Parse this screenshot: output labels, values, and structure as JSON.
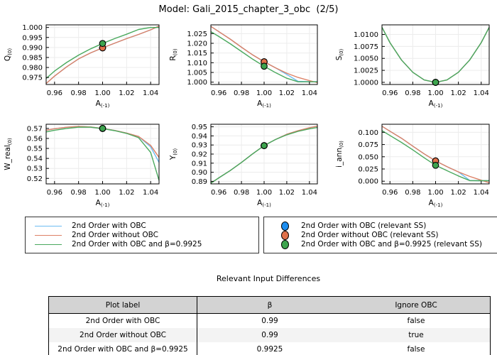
{
  "title": "Model: Gali_2015_chapter_3_obc  (2/5)",
  "colors": {
    "line_blue": "#6cbcf2",
    "line_red": "#dd8166",
    "line_green": "#4aa95e",
    "marker_blue": "#1b8df0",
    "marker_red": "#e0714a",
    "marker_green": "#3da44e",
    "grid": "#ececec",
    "axis": "#000000",
    "table_header_bg": "#d3d3d3",
    "table_alt_bg": "#f3f3f3",
    "table_border": "#000000"
  },
  "legend": {
    "lines": [
      {
        "label": "2nd Order with OBC",
        "color": "line_blue"
      },
      {
        "label": "2nd Order without OBC",
        "color": "line_red"
      },
      {
        "label": "2nd Order with OBC and β=0.9925",
        "color": "line_green"
      }
    ],
    "markers": [
      {
        "label": "2nd Order with OBC (relevant SS)",
        "color": "marker_blue"
      },
      {
        "label": "2nd Order without OBC (relevant SS)",
        "color": "marker_red"
      },
      {
        "label": "2nd Order with OBC and β=0.9925 (relevant SS)",
        "color": "marker_green"
      }
    ]
  },
  "table": {
    "title": "Relevant Input Differences",
    "columns": [
      "Plot label",
      "β",
      "Ignore OBC"
    ],
    "rows": [
      [
        "2nd Order with OBC",
        "0.99",
        "false"
      ],
      [
        "2nd Order without OBC",
        "0.99",
        "true"
      ],
      [
        "2nd Order with OBC and β=0.9925",
        "0.9925",
        "false"
      ]
    ]
  },
  "chart_data": [
    {
      "type": "line",
      "ylabel": "Q",
      "ylabel_sub": "(0)",
      "xlabel": "A",
      "xlabel_sub": "(-1)",
      "xlim": [
        0.953,
        1.047
      ],
      "ylim": [
        0.9715,
        1.0013
      ],
      "xticks": [
        0.96,
        0.98,
        1.0,
        1.02,
        1.04
      ],
      "xtick_labels": [
        "0.96",
        "0.98",
        "1.00",
        "1.02",
        "1.04"
      ],
      "yticks": [
        0.975,
        0.98,
        0.985,
        0.99,
        0.995,
        1.0
      ],
      "ytick_labels": [
        "0.975",
        "0.980",
        "0.985",
        "0.990",
        "0.995",
        "1.000"
      ],
      "x": [
        0.953,
        0.96,
        0.97,
        0.98,
        0.99,
        1.0,
        1.01,
        1.02,
        1.03,
        1.04,
        1.047
      ],
      "series": [
        {
          "name": "2nd Order with OBC",
          "color": "line_blue",
          "y": [
            0.972,
            0.9757,
            0.9803,
            0.9843,
            0.9873,
            0.9898,
            0.9921,
            0.9944,
            0.9965,
            0.9988,
            1.0007
          ]
        },
        {
          "name": "2nd Order without OBC",
          "color": "line_red",
          "y": [
            0.972,
            0.9757,
            0.9803,
            0.9843,
            0.9873,
            0.9898,
            0.9921,
            0.9944,
            0.9965,
            0.9988,
            1.0007
          ]
        },
        {
          "name": "2nd Order with OBC and β=0.9925",
          "color": "line_green",
          "y": [
            0.9745,
            0.9782,
            0.9825,
            0.9862,
            0.9893,
            0.992,
            0.9944,
            0.9966,
            0.999,
            1.0,
            1.0
          ]
        }
      ],
      "markers": [
        {
          "name": "2nd Order with OBC (relevant SS)",
          "color": "marker_blue",
          "x": 1.0,
          "y": 0.9898
        },
        {
          "name": "2nd Order without OBC (relevant SS)",
          "color": "marker_red",
          "x": 1.0,
          "y": 0.9898
        },
        {
          "name": "2nd Order with OBC and β=0.9925 (relevant SS)",
          "color": "marker_green",
          "x": 1.0,
          "y": 0.992
        }
      ]
    },
    {
      "type": "line",
      "ylabel": "R",
      "ylabel_sub": "(0)",
      "xlabel": "A",
      "xlabel_sub": "(-1)",
      "xlim": [
        0.953,
        1.047
      ],
      "ylim": [
        0.9988,
        1.0295
      ],
      "xticks": [
        0.96,
        0.98,
        1.0,
        1.02,
        1.04
      ],
      "xtick_labels": [
        "0.96",
        "0.98",
        "1.00",
        "1.02",
        "1.04"
      ],
      "yticks": [
        1.0,
        1.005,
        1.01,
        1.015,
        1.02,
        1.025
      ],
      "ytick_labels": [
        "1.000",
        "1.005",
        "1.010",
        "1.015",
        "1.020",
        "1.025"
      ],
      "x": [
        0.953,
        0.96,
        0.97,
        0.98,
        0.99,
        1.0,
        1.01,
        1.02,
        1.03,
        1.04,
        1.047
      ],
      "series": [
        {
          "name": "2nd Order with OBC",
          "color": "line_blue",
          "y": [
            1.0287,
            1.026,
            1.0222,
            1.018,
            1.014,
            1.0105,
            1.0074,
            1.004,
            1.0004,
            1.0003,
            1.0003
          ]
        },
        {
          "name": "2nd Order without OBC",
          "color": "line_red",
          "y": [
            1.0287,
            1.026,
            1.0222,
            1.018,
            1.014,
            1.0105,
            1.0074,
            1.0046,
            1.0024,
            1.0008,
            0.9998
          ]
        },
        {
          "name": "2nd Order with OBC and β=0.9925",
          "color": "line_green",
          "y": [
            1.026,
            1.0235,
            1.0198,
            1.0158,
            1.0118,
            1.0082,
            1.0049,
            1.002,
            1.0002,
            1.0002,
            1.0002
          ]
        }
      ],
      "markers": [
        {
          "name": "2nd Order with OBC (relevant SS)",
          "color": "marker_blue",
          "x": 1.0,
          "y": 1.0105
        },
        {
          "name": "2nd Order without OBC (relevant SS)",
          "color": "marker_red",
          "x": 1.0,
          "y": 1.0105
        },
        {
          "name": "2nd Order with OBC and β=0.9925 (relevant SS)",
          "color": "marker_green",
          "x": 1.0,
          "y": 1.0082
        }
      ]
    },
    {
      "type": "line",
      "ylabel": "S",
      "ylabel_sub": "(0)",
      "xlabel": "A",
      "xlabel_sub": "(-1)",
      "xlim": [
        0.953,
        1.047
      ],
      "ylim": [
        0.99955,
        1.012
      ],
      "xticks": [
        0.96,
        0.98,
        1.0,
        1.02,
        1.04
      ],
      "xtick_labels": [
        "0.96",
        "0.98",
        "1.00",
        "1.02",
        "1.04"
      ],
      "yticks": [
        1.0,
        1.0025,
        1.005,
        1.0075,
        1.01
      ],
      "ytick_labels": [
        "1.0000",
        "1.0025",
        "1.0050",
        "1.0075",
        "1.0100"
      ],
      "x": [
        0.953,
        0.96,
        0.97,
        0.98,
        0.99,
        1.0,
        1.01,
        1.02,
        1.03,
        1.04,
        1.047
      ],
      "series": [
        {
          "name": "2nd Order with OBC",
          "color": "line_blue",
          "y": [
            1.0115,
            1.0083,
            1.0047,
            1.0021,
            1.0005,
            1.0,
            1.0005,
            1.0021,
            1.0047,
            1.0083,
            1.0115
          ]
        },
        {
          "name": "2nd Order without OBC",
          "color": "line_red",
          "y": [
            1.0115,
            1.0083,
            1.0047,
            1.0021,
            1.0005,
            1.0,
            1.0005,
            1.0021,
            1.0047,
            1.0083,
            1.0115
          ]
        },
        {
          "name": "2nd Order with OBC and β=0.9925",
          "color": "line_green",
          "y": [
            1.0115,
            1.0083,
            1.0047,
            1.0021,
            1.0005,
            1.0,
            1.0005,
            1.0021,
            1.0047,
            1.0083,
            1.0115
          ]
        }
      ],
      "markers": [
        {
          "name": "2nd Order with OBC (relevant SS)",
          "color": "marker_blue",
          "x": 1.0,
          "y": 1.0
        },
        {
          "name": "2nd Order without OBC (relevant SS)",
          "color": "marker_red",
          "x": 1.0,
          "y": 1.0
        },
        {
          "name": "2nd Order with OBC and β=0.9925 (relevant SS)",
          "color": "marker_green",
          "x": 1.0,
          "y": 1.0
        }
      ]
    },
    {
      "type": "line",
      "ylabel": "W_real",
      "ylabel_sub": "(0)",
      "xlabel": "A",
      "xlabel_sub": "(-1)",
      "xlim": [
        0.953,
        1.047
      ],
      "ylim": [
        0.5145,
        0.5742
      ],
      "xticks": [
        0.96,
        0.98,
        1.0,
        1.02,
        1.04
      ],
      "xtick_labels": [
        "0.96",
        "0.98",
        "1.00",
        "1.02",
        "1.04"
      ],
      "yticks": [
        0.52,
        0.53,
        0.54,
        0.55,
        0.56,
        0.57
      ],
      "ytick_labels": [
        "0.52",
        "0.53",
        "0.54",
        "0.55",
        "0.56",
        "0.57"
      ],
      "x": [
        0.953,
        0.96,
        0.97,
        0.98,
        0.99,
        1.0,
        1.01,
        1.02,
        1.03,
        1.04,
        1.047
      ],
      "series": [
        {
          "name": "2nd Order with OBC",
          "color": "line_blue",
          "y": [
            0.5682,
            0.5697,
            0.5712,
            0.572,
            0.5715,
            0.57,
            0.568,
            0.5654,
            0.562,
            0.5515,
            0.536
          ]
        },
        {
          "name": "2nd Order without OBC",
          "color": "line_red",
          "y": [
            0.5682,
            0.5697,
            0.5712,
            0.572,
            0.5715,
            0.57,
            0.568,
            0.5654,
            0.562,
            0.553,
            0.541
          ]
        },
        {
          "name": "2nd Order with OBC and β=0.9925",
          "color": "line_green",
          "y": [
            0.5665,
            0.5682,
            0.57,
            0.5713,
            0.5712,
            0.5698,
            0.5678,
            0.565,
            0.5608,
            0.546,
            0.518
          ]
        }
      ],
      "markers": [
        {
          "name": "2nd Order with OBC (relevant SS)",
          "color": "marker_blue",
          "x": 1.0,
          "y": 0.57
        },
        {
          "name": "2nd Order without OBC (relevant SS)",
          "color": "marker_red",
          "x": 1.0,
          "y": 0.57
        },
        {
          "name": "2nd Order with OBC and β=0.9925 (relevant SS)",
          "color": "marker_green",
          "x": 1.0,
          "y": 0.57
        }
      ]
    },
    {
      "type": "line",
      "ylabel": "Y",
      "ylabel_sub": "(0)",
      "xlabel": "A",
      "xlabel_sub": "(-1)",
      "xlim": [
        0.953,
        1.047
      ],
      "ylim": [
        0.8872,
        0.9528
      ],
      "xticks": [
        0.96,
        0.98,
        1.0,
        1.02,
        1.04
      ],
      "xtick_labels": [
        "0.96",
        "0.98",
        "1.00",
        "1.02",
        "1.04"
      ],
      "yticks": [
        0.89,
        0.9,
        0.91,
        0.92,
        0.93,
        0.94,
        0.95
      ],
      "ytick_labels": [
        "0.89",
        "0.90",
        "0.91",
        "0.92",
        "0.93",
        "0.94",
        "0.95"
      ],
      "x": [
        0.953,
        0.96,
        0.97,
        0.98,
        0.99,
        1.0,
        1.01,
        1.02,
        1.03,
        1.04,
        1.047
      ],
      "series": [
        {
          "name": "2nd Order with OBC",
          "color": "line_blue",
          "y": [
            0.888,
            0.8938,
            0.9018,
            0.9108,
            0.9203,
            0.9293,
            0.936,
            0.9418,
            0.9458,
            0.949,
            0.9507
          ]
        },
        {
          "name": "2nd Order without OBC",
          "color": "line_red",
          "y": [
            0.888,
            0.8938,
            0.9018,
            0.9108,
            0.9203,
            0.9293,
            0.936,
            0.9418,
            0.9458,
            0.949,
            0.9507
          ]
        },
        {
          "name": "2nd Order with OBC and β=0.9925",
          "color": "line_green",
          "y": [
            0.888,
            0.8938,
            0.9018,
            0.9108,
            0.9203,
            0.9293,
            0.936,
            0.9412,
            0.945,
            0.9478,
            0.9492
          ]
        }
      ],
      "markers": [
        {
          "name": "2nd Order with OBC (relevant SS)",
          "color": "marker_blue",
          "x": 1.0,
          "y": 0.9293
        },
        {
          "name": "2nd Order without OBC (relevant SS)",
          "color": "marker_red",
          "x": 1.0,
          "y": 0.9293
        },
        {
          "name": "2nd Order with OBC and β=0.9925 (relevant SS)",
          "color": "marker_green",
          "x": 1.0,
          "y": 0.9293
        }
      ]
    },
    {
      "type": "line",
      "ylabel": "i_ann",
      "ylabel_sub": "(0)",
      "xlabel": "A",
      "xlabel_sub": "(-1)",
      "xlim": [
        0.953,
        1.047
      ],
      "ylim": [
        -0.0055,
        0.1165
      ],
      "xticks": [
        0.96,
        0.98,
        1.0,
        1.02,
        1.04
      ],
      "xtick_labels": [
        "0.96",
        "0.98",
        "1.00",
        "1.02",
        "1.04"
      ],
      "yticks": [
        0.0,
        0.025,
        0.05,
        0.075,
        0.1
      ],
      "ytick_labels": [
        "0.000",
        "0.025",
        "0.050",
        "0.075",
        "0.100"
      ],
      "x": [
        0.953,
        0.96,
        0.97,
        0.98,
        0.99,
        1.0,
        1.01,
        1.02,
        1.03,
        1.04,
        1.047
      ],
      "series": [
        {
          "name": "2nd Order with OBC",
          "color": "line_blue",
          "y": [
            0.1125,
            0.1022,
            0.088,
            0.0718,
            0.056,
            0.0415,
            0.0297,
            0.019,
            0.0015,
            0.001,
            0.001
          ]
        },
        {
          "name": "2nd Order without OBC",
          "color": "line_red",
          "y": [
            0.1125,
            0.1022,
            0.088,
            0.0718,
            0.056,
            0.0415,
            0.0297,
            0.019,
            0.0098,
            0.002,
            -0.003
          ]
        },
        {
          "name": "2nd Order with OBC and β=0.9925",
          "color": "line_green",
          "y": [
            0.1035,
            0.0935,
            0.0795,
            0.064,
            0.048,
            0.0325,
            0.0215,
            0.0108,
            0.0012,
            0.001,
            0.001
          ]
        }
      ],
      "markers": [
        {
          "name": "2nd Order with OBC (relevant SS)",
          "color": "marker_blue",
          "x": 1.0,
          "y": 0.0415
        },
        {
          "name": "2nd Order without OBC (relevant SS)",
          "color": "marker_red",
          "x": 1.0,
          "y": 0.0415
        },
        {
          "name": "2nd Order with OBC and β=0.9925 (relevant SS)",
          "color": "marker_green",
          "x": 1.0,
          "y": 0.0325
        }
      ]
    }
  ]
}
